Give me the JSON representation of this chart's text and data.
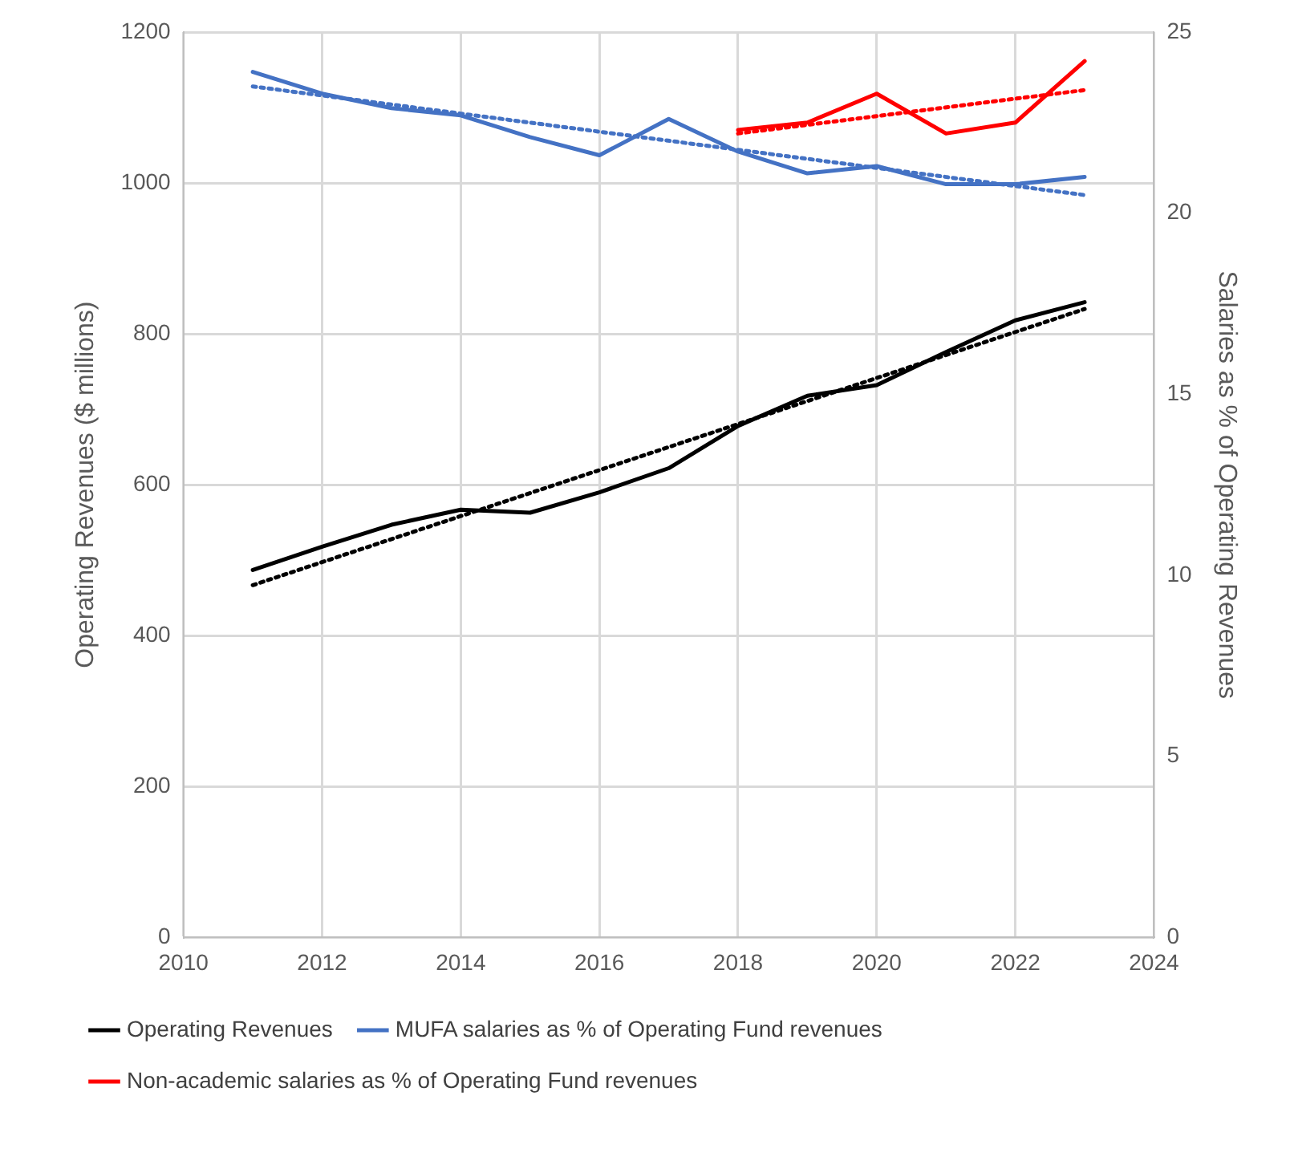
{
  "chart_data": {
    "type": "line",
    "ylabel": "Operating Revenues ($ millions)",
    "y2label": "Salaries as % of Operating Revenues",
    "x": [
      2011,
      2012,
      2013,
      2014,
      2015,
      2016,
      2017,
      2018,
      2019,
      2020,
      2021,
      2022,
      2023
    ],
    "series": [
      {
        "name": "Operating Revenues",
        "color": "#000000",
        "values": [
          487,
          518,
          547,
          567,
          563,
          590,
          622,
          678,
          718,
          732,
          776,
          818,
          842
        ]
      },
      {
        "name": "MUFA salaries as % of Operating Fund revenues",
        "color": "#4472c4",
        "axis": "y2",
        "values": [
          23.9,
          23.3,
          22.9,
          22.7,
          22.1,
          21.6,
          22.6,
          21.7,
          21.1,
          21.3,
          20.8,
          20.8,
          21.0
        ]
      },
      {
        "name": "Non-academic salaries as % of Operating Fund revenues",
        "color": "#ff0000",
        "axis": "y2",
        "x": [
          2018,
          2019,
          2020,
          2021,
          2022,
          2023
        ],
        "values": [
          22.3,
          22.5,
          23.3,
          22.2,
          22.5,
          24.2
        ]
      },
      {
        "type": "line",
        "color": "#000000",
        "line_style": "dotted",
        "x": [
          2011,
          2023
        ],
        "values": [
          467,
          833
        ]
      },
      {
        "type": "line",
        "color": "#4472c4",
        "line_style": "dotted",
        "axis": "y2",
        "x": [
          2011,
          2023
        ],
        "values": [
          23.5,
          20.5
        ]
      },
      {
        "type": "line",
        "color": "#ff0000",
        "line_style": "dotted",
        "axis": "y2",
        "x": [
          2018,
          2023
        ],
        "values": [
          22.2,
          23.4
        ]
      }
    ],
    "xlim": [
      2010,
      2024
    ],
    "xticks": [
      2010,
      2012,
      2014,
      2016,
      2018,
      2020,
      2022,
      2024
    ],
    "ylim": [
      0,
      1200
    ],
    "yticks": [
      0,
      200,
      400,
      600,
      800,
      1000,
      1200
    ],
    "y2lim": [
      0,
      25
    ],
    "y2ticks": [
      0,
      5,
      10,
      15,
      20,
      25
    ],
    "grid": true,
    "legend": "bottom",
    "marker": "none",
    "line_style": "solid"
  }
}
